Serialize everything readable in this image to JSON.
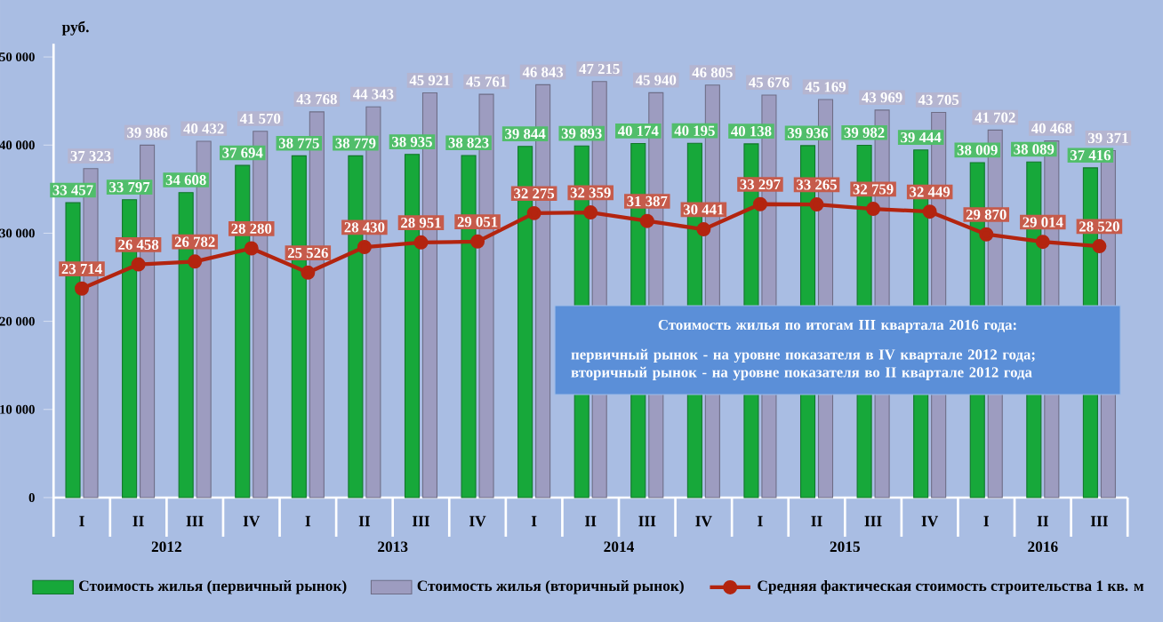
{
  "chart_data": {
    "type": "bar",
    "ylabel": "руб.",
    "categories": [
      "I",
      "II",
      "III",
      "IV",
      "I",
      "II",
      "III",
      "IV",
      "I",
      "II",
      "III",
      "IV",
      "I",
      "II",
      "III",
      "IV",
      "I",
      "II",
      "III"
    ],
    "series": [
      {
        "name": "Стоимость жилья (первичный рынок)",
        "color": "#17a83a",
        "values": [
          33457,
          33797,
          34608,
          37694,
          38775,
          38779,
          38935,
          38823,
          39844,
          39893,
          40174,
          40195,
          40138,
          39936,
          39982,
          39444,
          38009,
          38089,
          37416
        ],
        "value_labels": [
          "33 457",
          "33 797",
          "34 608",
          "37 694",
          "38 775",
          "38 779",
          "38 935",
          "38 823",
          "39 844",
          "39 893",
          "40 174",
          "40 195",
          "40 138",
          "39 936",
          "39 982",
          "39 444",
          "38 009",
          "38 089",
          "37 416"
        ]
      },
      {
        "name": "Стоимость жилья (вторичный рынок)",
        "color": "#9d9cc0",
        "values": [
          37323,
          39986,
          40432,
          41570,
          43768,
          44343,
          45921,
          45761,
          46843,
          47215,
          45940,
          46805,
          45676,
          45169,
          43969,
          43705,
          41702,
          40468,
          39371
        ],
        "value_labels": [
          "37 323",
          "39 986",
          "40 432",
          "41 570",
          "43 768",
          "44 343",
          "45 921",
          "45 761",
          "46 843",
          "47 215",
          "45 940",
          "46 805",
          "45 676",
          "45 169",
          "43 969",
          "43 705",
          "41 702",
          "40 468",
          "39 371"
        ]
      },
      {
        "name": "Средняя фактическая стоимость строительства 1 кв. м",
        "type": "line",
        "color": "#b3240f",
        "values": [
          23714,
          26458,
          26782,
          28280,
          25526,
          28430,
          28951,
          29051,
          32275,
          32359,
          31387,
          30441,
          33297,
          33265,
          32759,
          32449,
          29870,
          29014,
          28520
        ],
        "value_labels": [
          "23 714",
          "26 458",
          "26 782",
          "28 280",
          "25 526",
          "28 430",
          "28 951",
          "29 051",
          "32 275",
          "32 359",
          "31 387",
          "30 441",
          "33 297",
          "33 265",
          "32 759",
          "32 449",
          "29 870",
          "29 014",
          "28 520"
        ]
      }
    ],
    "ylim": [
      0,
      51500
    ],
    "yticks": [
      0,
      {
        "value": 10000,
        "label": "10 000"
      },
      {
        "value": 20000,
        "label": "20 000"
      },
      {
        "value": 30000,
        "label": "30 000"
      },
      {
        "value": 40000,
        "label": "40 000"
      },
      {
        "value": 50000,
        "label": "50 000"
      }
    ],
    "marker": "circle",
    "legend": "bottom",
    "grid": false,
    "annotations": [
      "2012",
      "2013",
      "2014",
      "2015",
      "2016",
      "Стоимость жилья по итогам III квартала 2016 года:",
      "первичный рынок - на уровне показателя в IV квартале 2012 года;",
      "вторичный рынок - на уровне показателя во II квартале 2012 года"
    ]
  }
}
